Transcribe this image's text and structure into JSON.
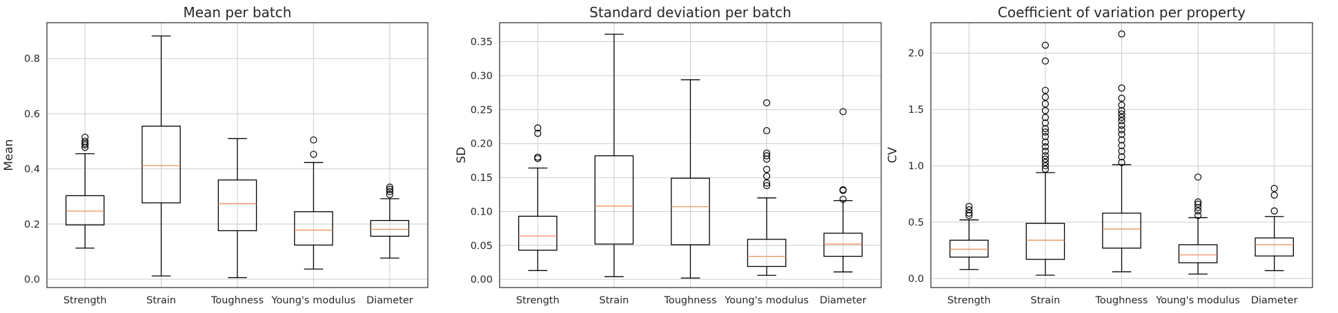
{
  "chart_data": [
    {
      "type": "box",
      "title": "Mean per batch",
      "xlabel": "",
      "ylabel": "Mean",
      "ylim": [
        -0.03,
        0.93
      ],
      "yticks": [
        0.0,
        0.2,
        0.4,
        0.6,
        0.8
      ],
      "ytick_labels": [
        "0.0",
        "0.2",
        "0.4",
        "0.6",
        "0.8"
      ],
      "grid": true,
      "categories": [
        "Strength",
        "Strain",
        "Toughness",
        "Young's modulus",
        "Diameter"
      ],
      "boxes": [
        {
          "whislo": 0.113,
          "q1": 0.197,
          "med": 0.247,
          "q3": 0.303,
          "whishi": 0.455,
          "fliers": [
            0.478,
            0.487,
            0.493,
            0.5,
            0.515
          ]
        },
        {
          "whislo": 0.012,
          "q1": 0.277,
          "med": 0.412,
          "q3": 0.555,
          "whishi": 0.882,
          "fliers": []
        },
        {
          "whislo": 0.006,
          "q1": 0.176,
          "med": 0.274,
          "q3": 0.36,
          "whishi": 0.51,
          "fliers": []
        },
        {
          "whislo": 0.037,
          "q1": 0.124,
          "med": 0.178,
          "q3": 0.245,
          "whishi": 0.423,
          "fliers": [
            0.453,
            0.505
          ]
        },
        {
          "whislo": 0.077,
          "q1": 0.156,
          "med": 0.181,
          "q3": 0.213,
          "whishi": 0.292,
          "fliers": [
            0.307,
            0.318,
            0.326,
            0.334
          ]
        }
      ]
    },
    {
      "type": "box",
      "title": "Standard deviation per batch",
      "xlabel": "",
      "ylabel": "SD",
      "ylim": [
        -0.012,
        0.378
      ],
      "yticks": [
        0.0,
        0.05,
        0.1,
        0.15,
        0.2,
        0.25,
        0.3,
        0.35
      ],
      "ytick_labels": [
        "0.00",
        "0.05",
        "0.10",
        "0.15",
        "0.20",
        "0.25",
        "0.30",
        "0.35"
      ],
      "grid": true,
      "categories": [
        "Strength",
        "Strain",
        "Toughness",
        "Young's modulus",
        "Diameter"
      ],
      "boxes": [
        {
          "whislo": 0.013,
          "q1": 0.043,
          "med": 0.064,
          "q3": 0.093,
          "whishi": 0.164,
          "fliers": [
            0.178,
            0.18,
            0.215,
            0.223
          ]
        },
        {
          "whislo": 0.004,
          "q1": 0.052,
          "med": 0.108,
          "q3": 0.182,
          "whishi": 0.361,
          "fliers": []
        },
        {
          "whislo": 0.002,
          "q1": 0.051,
          "med": 0.107,
          "q3": 0.149,
          "whishi": 0.294,
          "fliers": []
        },
        {
          "whislo": 0.006,
          "q1": 0.019,
          "med": 0.034,
          "q3": 0.059,
          "whishi": 0.12,
          "fliers": [
            0.138,
            0.142,
            0.152,
            0.162,
            0.177,
            0.182,
            0.186,
            0.219,
            0.26
          ]
        },
        {
          "whislo": 0.011,
          "q1": 0.034,
          "med": 0.052,
          "q3": 0.068,
          "whishi": 0.116,
          "fliers": [
            0.118,
            0.131,
            0.132,
            0.247
          ]
        }
      ]
    },
    {
      "type": "box",
      "title": "Coefficient of variation per property",
      "xlabel": "",
      "ylabel": "CV",
      "ylim": [
        -0.08,
        2.27
      ],
      "yticks": [
        0.0,
        0.5,
        1.0,
        1.5,
        2.0
      ],
      "ytick_labels": [
        "0.0",
        "0.5",
        "1.0",
        "1.5",
        "2.0"
      ],
      "grid": true,
      "categories": [
        "Strength",
        "Strain",
        "Toughness",
        "Young's modulus",
        "Diameter"
      ],
      "boxes": [
        {
          "whislo": 0.08,
          "q1": 0.19,
          "med": 0.26,
          "q3": 0.34,
          "whishi": 0.52,
          "fliers": [
            0.56,
            0.58,
            0.61,
            0.64
          ]
        },
        {
          "whislo": 0.03,
          "q1": 0.17,
          "med": 0.34,
          "q3": 0.49,
          "whishi": 0.94,
          "fliers": [
            0.97,
            1.0,
            1.03,
            1.06,
            1.09,
            1.13,
            1.17,
            1.21,
            1.26,
            1.3,
            1.33,
            1.38,
            1.43,
            1.49,
            1.55,
            1.61,
            1.67,
            1.93,
            2.07
          ]
        },
        {
          "whislo": 0.06,
          "q1": 0.27,
          "med": 0.44,
          "q3": 0.58,
          "whishi": 1.01,
          "fliers": [
            1.03,
            1.08,
            1.13,
            1.18,
            1.23,
            1.28,
            1.32,
            1.36,
            1.4,
            1.43,
            1.46,
            1.49,
            1.54,
            1.6,
            1.69,
            2.17
          ]
        },
        {
          "whislo": 0.04,
          "q1": 0.14,
          "med": 0.21,
          "q3": 0.3,
          "whishi": 0.54,
          "fliers": [
            0.56,
            0.6,
            0.63,
            0.66,
            0.68,
            0.9
          ]
        },
        {
          "whislo": 0.07,
          "q1": 0.2,
          "med": 0.3,
          "q3": 0.36,
          "whishi": 0.55,
          "fliers": [
            0.6,
            0.74,
            0.8
          ]
        }
      ]
    }
  ]
}
